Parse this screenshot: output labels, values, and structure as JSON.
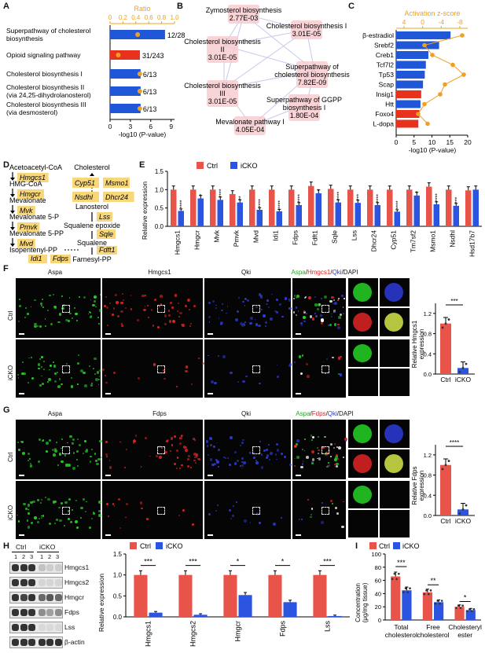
{
  "panels": {
    "A": {
      "label": "A",
      "top_axis_label": "Ratio",
      "top_ticks": [
        "0",
        "0.2",
        "0.4",
        "0.6",
        "0.8",
        "1.0"
      ],
      "bottom_ticks": [
        "0",
        "3",
        "6",
        "9"
      ],
      "xlabel": "-log10 (P-value)",
      "rows": [
        {
          "name": "Superpathway of cholesterol biosynthesis",
          "neglogp": 8.1,
          "ratio": "12/28",
          "color": "#1f57d8"
        },
        {
          "name": "Opioid signaling pathway",
          "neglogp": 4.4,
          "ratio": "31/243",
          "color": "#e8321e"
        },
        {
          "name": "Cholesterol biosynthesis I",
          "neglogp": 4.5,
          "ratio": "6/13",
          "color": "#1f57d8"
        },
        {
          "name": "Cholesterol biosynthesis II (via 24,25-dihydrolanosterol)",
          "neglogp": 4.5,
          "ratio": "6/13",
          "color": "#1f57d8"
        },
        {
          "name": "Cholesterol biosynthesis III (via desmosterol)",
          "neglogp": 4.5,
          "ratio": "6/13",
          "color": "#1f57d8"
        }
      ]
    },
    "B": {
      "label": "B",
      "nodes": [
        {
          "name": "Zymosterol biosynthesis",
          "p": "2.77E-03"
        },
        {
          "name": "Cholesterol biosynthesis I",
          "p": "3.01E-05"
        },
        {
          "name": "Cholesterol biosynthesis II",
          "p": "3.01E-05"
        },
        {
          "name": "Superpathway of cholesterol biosynthesis",
          "p": "7.82E-09"
        },
        {
          "name": "Cholesterol biosynthesis III",
          "p": "3.01E-05"
        },
        {
          "name": "Superpathway of GGPP biosynthesis I",
          "p": "1.80E-04"
        },
        {
          "name": "Mevalonate pathway I",
          "p": "4.05E-04"
        }
      ]
    },
    "C": {
      "label": "C",
      "top_axis_label": "Activation z-score",
      "top_ticks": [
        "4",
        "0",
        "-4",
        "-8"
      ],
      "bottom_ticks": [
        "0",
        "5",
        "10",
        "15",
        "20"
      ],
      "xlabel": "-log10 (P-value)",
      "rows": [
        {
          "name": "β-estradiol",
          "neglogp": 15.2,
          "color": "#1f57d8"
        },
        {
          "name": "Srebf2",
          "neglogp": 12.0,
          "color": "#1f57d8"
        },
        {
          "name": "Creb1",
          "neglogp": 9.0,
          "color": "#1f57d8"
        },
        {
          "name": "Tcf7l2",
          "neglogp": 8.3,
          "color": "#1f57d8"
        },
        {
          "name": "Tp53",
          "neglogp": 8.0,
          "color": "#1f57d8"
        },
        {
          "name": "Scap",
          "neglogp": 7.5,
          "color": "#1f57d8"
        },
        {
          "name": "Insig1",
          "neglogp": 7.0,
          "color": "#e8321e"
        },
        {
          "name": "Htt",
          "neglogp": 6.8,
          "color": "#1f57d8"
        },
        {
          "name": "Foxo4",
          "neglogp": 6.5,
          "color": "#e8321e"
        },
        {
          "name": "L-dopa",
          "neglogp": 6.2,
          "color": "#e8321e"
        }
      ]
    },
    "D": {
      "label": "D",
      "left_metabolites": [
        "Acetoacetyl-CoA",
        "HMG-CoA",
        "Mevalonate",
        "Mevalonate 5-P",
        "Mevalonate 5-PP",
        "Isopentenyl-PP"
      ],
      "left_enzymes": [
        "Hmgcs1",
        "Hmgcr",
        "Mvk",
        "Pmvk",
        "Mvd"
      ],
      "right_metabolites": [
        "Cholesterol",
        "Lanosterol",
        "Squalene epoxide",
        "Squalene",
        "Farnesyl-PP"
      ],
      "right_enzymes_a": [
        "Cyp51",
        "Nsdhl"
      ],
      "right_enzymes_b": [
        "Msmo1",
        "Dhcr24"
      ],
      "lss": "Lss",
      "sqle": "Sqle",
      "fdft1": "Fdft1",
      "bottom_enzymes": [
        "Idi1",
        "Fdps"
      ]
    },
    "E": {
      "label": "E",
      "legend": [
        "Ctrl",
        "iCKO"
      ],
      "ylabel": "Relative expression",
      "yticks": [
        "0.0",
        "0.5",
        "1.0",
        "1.5"
      ]
    },
    "F": {
      "label": "F",
      "titles": [
        "Aspa",
        "Hmgcs1",
        "Qki"
      ],
      "merge_title": {
        "a": "Aspa",
        "s1": "/",
        "b": "Hmgcs1",
        "s2": "/",
        "c": "Qki",
        "d": "/DAPI"
      },
      "rows": [
        "Ctrl",
        "iCKO"
      ],
      "ylabel_1": "Relative Hmgcs1",
      "ylabel_2": "expression",
      "sig": "***",
      "xticks": [
        "Ctrl",
        "iCKO"
      ],
      "yticks": [
        "0.0",
        "0.4",
        "0.8",
        "1.2"
      ]
    },
    "G": {
      "label": "G",
      "titles": [
        "Aspa",
        "Fdps",
        "Qki"
      ],
      "merge_title": {
        "a": "Aspa",
        "s1": "/",
        "b": "Fdps",
        "s2": "/",
        "c": "Qki",
        "d": "/DAPI"
      },
      "rows": [
        "Ctrl",
        "iCKO"
      ],
      "ylabel_1": "Relative Fdps",
      "ylabel_2": "expression",
      "sig": "****",
      "xticks": [
        "Ctrl",
        "iCKO"
      ],
      "yticks": [
        "0.0",
        "0.4",
        "0.8",
        "1.2"
      ]
    },
    "H": {
      "label": "H",
      "group_labels": [
        "Ctrl",
        "iCKO"
      ],
      "lane_numbers": [
        "1",
        "2",
        "3",
        "1",
        "2",
        "3"
      ],
      "blots": [
        "Hmgcs1",
        "Hmgcs2",
        "Hmgcr",
        "Fdps",
        "Lss",
        "β-actin"
      ],
      "legend": [
        "Ctrl",
        "iCKO"
      ],
      "ylabel": "Relative expression",
      "yticks": [
        "0.0",
        "0.5",
        "1.0",
        "1.5"
      ]
    },
    "I": {
      "label": "I",
      "legend": [
        "Ctrl",
        "iCKO"
      ],
      "ylabel_1": "Concentration",
      "ylabel_2": "(μg/mg tissue)",
      "yticks": [
        "0",
        "20",
        "40",
        "60",
        "80",
        "100"
      ],
      "cat_lines": [
        [
          "Total",
          "cholesterol"
        ],
        [
          "Free",
          "cholesterol"
        ],
        [
          "Cholesteryl",
          "ester"
        ]
      ]
    }
  },
  "colors": {
    "ctrl": "#e8534a",
    "icko": "#2b54e0",
    "orange": "#f0a020",
    "enzyme_box": "#f8d77a"
  },
  "chart_data": [
    {
      "type": "bar",
      "id": "E",
      "categories": [
        "Hmgcs1",
        "Hmgcr",
        "Mvk",
        "Pmvk",
        "Mvd",
        "Idi1",
        "Fdps",
        "Fdft1",
        "Sqle",
        "Lss",
        "Dhcr24",
        "Cyp51",
        "Tm7sf2",
        "Msmo1",
        "Nsdhl",
        "Hsd17b7"
      ],
      "series": [
        {
          "name": "Ctrl",
          "values": [
            1.0,
            1.0,
            1.0,
            0.88,
            1.0,
            1.0,
            1.0,
            1.1,
            1.02,
            1.0,
            1.0,
            1.0,
            1.0,
            1.08,
            1.0,
            0.98
          ]
        },
        {
          "name": "iCKO",
          "values": [
            0.42,
            0.76,
            0.72,
            0.65,
            0.45,
            0.41,
            0.58,
            0.9,
            0.65,
            0.64,
            0.58,
            0.4,
            0.84,
            0.6,
            0.56,
            1.0
          ]
        }
      ],
      "significance": [
        "****",
        "*",
        "****",
        "**",
        "****",
        "****",
        "****",
        "*",
        "****",
        "***",
        "****",
        "****",
        "*",
        "****",
        "***",
        ""
      ],
      "ylabel": "Relative expression",
      "ylim": [
        0,
        1.5
      ]
    },
    {
      "type": "bar",
      "id": "F-quant",
      "categories": [
        "Ctrl",
        "iCKO"
      ],
      "values": [
        1.0,
        0.12
      ],
      "ylabel": "Relative Hmgcs1 expression",
      "ylim": [
        0,
        1.4
      ]
    },
    {
      "type": "bar",
      "id": "G-quant",
      "categories": [
        "Ctrl",
        "iCKO"
      ],
      "values": [
        1.0,
        0.12
      ],
      "ylabel": "Relative Fdps expression",
      "ylim": [
        0,
        1.4
      ]
    },
    {
      "type": "bar",
      "id": "H-quant",
      "categories": [
        "Hmgcs1",
        "Hmgcs2",
        "Hmgcr",
        "Fdps",
        "Lss"
      ],
      "series": [
        {
          "name": "Ctrl",
          "values": [
            1.0,
            1.0,
            1.0,
            1.0,
            1.0
          ]
        },
        {
          "name": "iCKO",
          "values": [
            0.1,
            0.05,
            0.52,
            0.35,
            0.02
          ]
        }
      ],
      "significance": [
        "***",
        "***",
        "*",
        "*",
        "***"
      ],
      "ylabel": "Relative expression",
      "ylim": [
        0,
        1.5
      ]
    },
    {
      "type": "bar",
      "id": "I",
      "categories": [
        "Total cholesterol",
        "Free cholesterol",
        "Cholesteryl ester"
      ],
      "series": [
        {
          "name": "Ctrl",
          "values": [
            66,
            42,
            20
          ]
        },
        {
          "name": "iCKO",
          "values": [
            45,
            27,
            15
          ]
        }
      ],
      "significance": [
        "***",
        "**",
        "*"
      ],
      "ylabel": "Concentration (μg/mg tissue)",
      "ylim": [
        0,
        100
      ]
    }
  ]
}
